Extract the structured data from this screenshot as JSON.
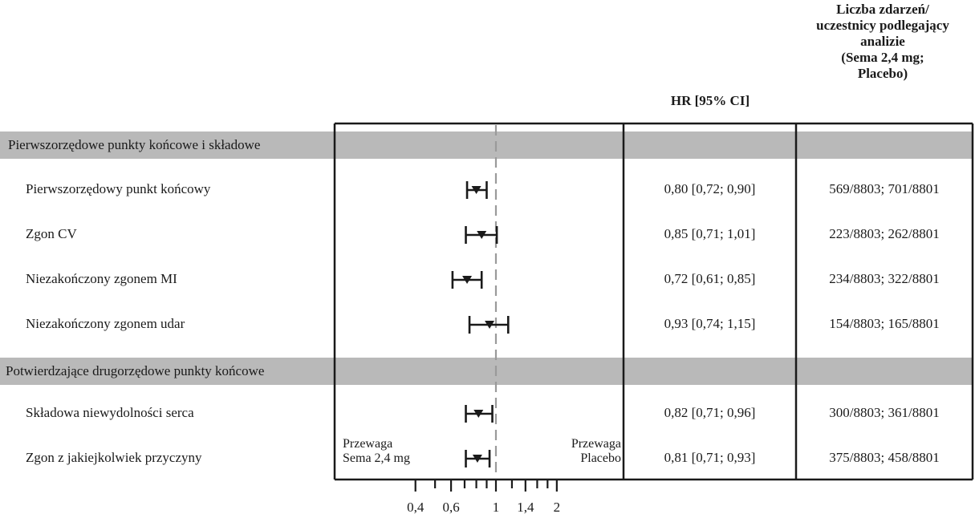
{
  "headers": {
    "hr": "HR [95% CI]",
    "events": [
      "Liczba zdarzeń/",
      "uczestnicy podlegający",
      "analizie",
      "(Sema 2,4 mg;",
      "Placebo)"
    ]
  },
  "sections": [
    {
      "title": "Pierwszorzędowe punkty końcowe i składowe"
    },
    {
      "title": "Potwierdzające drugorzędowe punkty końcowe"
    }
  ],
  "favors": {
    "left": [
      "Przewaga",
      "Sema 2,4 mg"
    ],
    "right": [
      "Przewaga",
      "Placebo"
    ]
  },
  "chart_data": {
    "type": "forest",
    "x_scale": "log",
    "reference_line": 1,
    "xticks": [
      "0,4",
      "0,6",
      "1",
      "1,4",
      "2"
    ],
    "rows": [
      {
        "label": "Pierwszorzędowy punkt końcowy",
        "hr": 0.8,
        "lo": 0.72,
        "hi": 0.9,
        "hr_text": "0,80 [0,72; 0,90]",
        "events": "569/8803; 701/8801"
      },
      {
        "label": "Zgon CV",
        "hr": 0.85,
        "lo": 0.71,
        "hi": 1.01,
        "hr_text": "0,85 [0,71; 1,01]",
        "events": "223/8803; 262/8801"
      },
      {
        "label": "Niezakończony zgonem MI",
        "hr": 0.72,
        "lo": 0.61,
        "hi": 0.85,
        "hr_text": "0,72 [0,61; 0,85]",
        "events": "234/8803; 322/8801"
      },
      {
        "label": "Niezakończony zgonem udar",
        "hr": 0.93,
        "lo": 0.74,
        "hi": 1.15,
        "hr_text": "0,93 [0,74; 1,15]",
        "events": "154/8803; 165/8801"
      },
      {
        "label": "Składowa niewydolności serca",
        "hr": 0.82,
        "lo": 0.71,
        "hi": 0.96,
        "hr_text": "0,82 [0,71; 0,96]",
        "events": "300/8803; 361/8801"
      },
      {
        "label": "Zgon z jakiejkolwiek przyczyny",
        "hr": 0.81,
        "lo": 0.71,
        "hi": 0.93,
        "hr_text": "0,81 [0,71; 0,93]",
        "events": "375/8803; 458/8801"
      }
    ]
  }
}
